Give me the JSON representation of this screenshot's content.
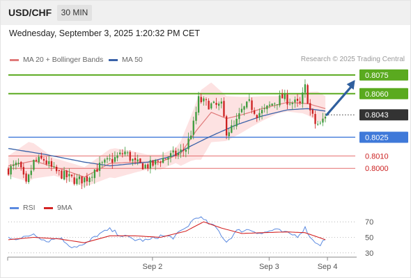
{
  "header": {
    "pair": "USD/CHF",
    "timeframe": "30 MIN"
  },
  "timestamp": "Wednesday, September 3, 2025 1:20:32 PM CET",
  "legend": {
    "ma20": "MA 20 + Bollinger Bands",
    "ma50": "MA 50",
    "rsi": "RSI",
    "rsi_ma": "9MA",
    "credit": "Research © 2025 Trading Central"
  },
  "colors": {
    "up": "#3c9b3c",
    "down": "#cc2020",
    "ma20": "#e07a7a",
    "ma50": "#3a62a8",
    "bands": "#fde2e2",
    "target": "#5aaa1f",
    "current": "#333333",
    "pivot": "#3f79d9",
    "support": "#e46b6b",
    "arrow": "#2f5f9e",
    "rsi": "#5b8ae0",
    "rsi_ma": "#d42424"
  },
  "chart_data": [
    {
      "type": "candlestick",
      "title": "USD/CHF 30 MIN",
      "y_range": [
        0.7975,
        0.8085
      ],
      "x_range": [
        0,
        128
      ],
      "x_ticks": [
        {
          "x": 56,
          "label": "Sep 2"
        },
        {
          "x": 102,
          "label": "Sep 3"
        },
        {
          "x": 125,
          "label": "Sep 4"
        }
      ],
      "levels": [
        {
          "value": 0.8075,
          "label": "0.8075",
          "kind": "target"
        },
        {
          "value": 0.806,
          "label": "0.8060",
          "kind": "target"
        },
        {
          "value": 0.8043,
          "label": "0.8043",
          "kind": "current"
        },
        {
          "value": 0.8025,
          "label": "0.8025",
          "kind": "pivot"
        },
        {
          "value": 0.801,
          "label": "0.8010",
          "kind": "support"
        },
        {
          "value": 0.8,
          "label": "0.8000",
          "kind": "support"
        }
      ],
      "close_anchors": [
        [
          0,
          0.7999
        ],
        [
          4,
          0.8003
        ],
        [
          7,
          0.7986
        ],
        [
          10,
          0.8005
        ],
        [
          14,
          0.8007
        ],
        [
          18,
          0.7998
        ],
        [
          22,
          0.7994
        ],
        [
          27,
          0.799
        ],
        [
          31,
          0.7992
        ],
        [
          34,
          0.7999
        ],
        [
          38,
          0.8004
        ],
        [
          42,
          0.8008
        ],
        [
          46,
          0.8013
        ],
        [
          50,
          0.8004
        ],
        [
          54,
          0.8002
        ],
        [
          57,
          0.8003
        ],
        [
          60,
          0.8007
        ],
        [
          64,
          0.801
        ],
        [
          67,
          0.8012
        ],
        [
          70,
          0.8016
        ],
        [
          73,
          0.8035
        ],
        [
          75,
          0.8055
        ],
        [
          78,
          0.8052
        ],
        [
          81,
          0.805
        ],
        [
          84,
          0.805
        ],
        [
          86,
          0.803
        ],
        [
          89,
          0.8033
        ],
        [
          92,
          0.8046
        ],
        [
          95,
          0.8052
        ],
        [
          98,
          0.8044
        ],
        [
          101,
          0.8046
        ],
        [
          104,
          0.8052
        ],
        [
          108,
          0.8057
        ],
        [
          112,
          0.8053
        ],
        [
          115,
          0.8051
        ],
        [
          117,
          0.8065
        ],
        [
          119,
          0.8046
        ],
        [
          121,
          0.8036
        ],
        [
          123,
          0.8035
        ],
        [
          125,
          0.8043
        ]
      ],
      "ma20_anchors": [
        [
          0,
          0.8002
        ],
        [
          10,
          0.8006
        ],
        [
          20,
          0.8
        ],
        [
          30,
          0.7993
        ],
        [
          40,
          0.8004
        ],
        [
          50,
          0.8005
        ],
        [
          60,
          0.8005
        ],
        [
          68,
          0.8012
        ],
        [
          74,
          0.803
        ],
        [
          80,
          0.8045
        ],
        [
          86,
          0.804
        ],
        [
          92,
          0.8043
        ],
        [
          100,
          0.8048
        ],
        [
          110,
          0.8053
        ],
        [
          118,
          0.8052
        ],
        [
          125,
          0.8048
        ]
      ],
      "ma50_anchors": [
        [
          0,
          0.8016
        ],
        [
          15,
          0.8011
        ],
        [
          30,
          0.8005
        ],
        [
          40,
          0.8002
        ],
        [
          55,
          0.8005
        ],
        [
          65,
          0.801
        ],
        [
          72,
          0.8018
        ],
        [
          80,
          0.8026
        ],
        [
          90,
          0.8035
        ],
        [
          100,
          0.8042
        ],
        [
          110,
          0.8047
        ],
        [
          118,
          0.8048
        ],
        [
          125,
          0.8046
        ]
      ],
      "band_width_anchors": [
        [
          0,
          0.0008
        ],
        [
          8,
          0.0016
        ],
        [
          18,
          0.0007
        ],
        [
          30,
          0.0008
        ],
        [
          42,
          0.0012
        ],
        [
          55,
          0.0006
        ],
        [
          66,
          0.0006
        ],
        [
          72,
          0.0018
        ],
        [
          76,
          0.0028
        ],
        [
          86,
          0.0018
        ],
        [
          96,
          0.0012
        ],
        [
          106,
          0.0007
        ],
        [
          116,
          0.0008
        ],
        [
          122,
          0.0012
        ],
        [
          125,
          0.001
        ]
      ],
      "projection": {
        "from": [
          125,
          0.8043
        ],
        "to": [
          129,
          0.8071
        ]
      }
    },
    {
      "type": "line",
      "title": "RSI",
      "y_range": [
        20,
        80
      ],
      "y_ticks": [
        30,
        50,
        70
      ],
      "series": [
        {
          "name": "RSI",
          "anchors": [
            [
              0,
              50
            ],
            [
              5,
              48
            ],
            [
              10,
              55
            ],
            [
              15,
              45
            ],
            [
              20,
              50
            ],
            [
              25,
              38
            ],
            [
              30,
              40
            ],
            [
              35,
              53
            ],
            [
              40,
              60
            ],
            [
              45,
              52
            ],
            [
              50,
              47
            ],
            [
              55,
              46
            ],
            [
              60,
              52
            ],
            [
              65,
              50
            ],
            [
              70,
              62
            ],
            [
              73,
              73
            ],
            [
              75,
              77
            ],
            [
              78,
              70
            ],
            [
              82,
              62
            ],
            [
              86,
              44
            ],
            [
              90,
              58
            ],
            [
              95,
              60
            ],
            [
              100,
              55
            ],
            [
              105,
              60
            ],
            [
              110,
              55
            ],
            [
              114,
              52
            ],
            [
              117,
              62
            ],
            [
              120,
              46
            ],
            [
              123,
              41
            ],
            [
              125,
              48
            ]
          ]
        },
        {
          "name": "9MA",
          "anchors": [
            [
              0,
              47
            ],
            [
              10,
              50
            ],
            [
              20,
              48
            ],
            [
              30,
              43
            ],
            [
              40,
              52
            ],
            [
              50,
              52
            ],
            [
              60,
              50
            ],
            [
              70,
              58
            ],
            [
              77,
              70
            ],
            [
              84,
              62
            ],
            [
              92,
              55
            ],
            [
              100,
              56
            ],
            [
              110,
              57
            ],
            [
              117,
              56
            ],
            [
              125,
              47
            ]
          ]
        }
      ]
    }
  ]
}
